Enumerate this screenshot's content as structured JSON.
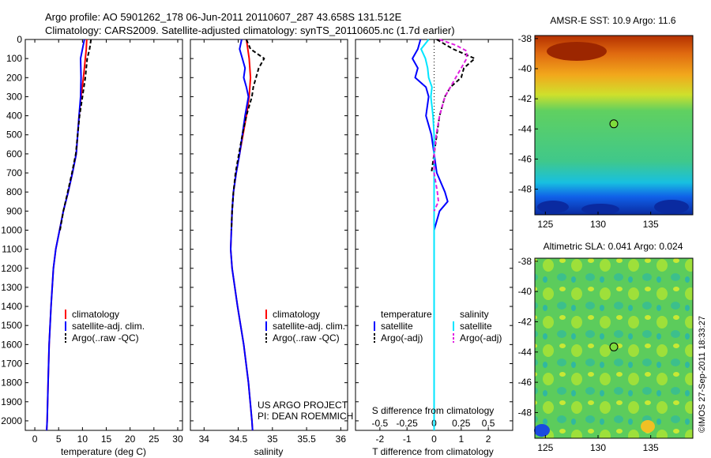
{
  "header": {
    "line1": "Argo profile: AO 5901262_178 06-Jun-2011 20110607_287 43.658S 131.512E",
    "line2": "Climatology: CARS2009. Satellite-adjusted climatology: synTS_20110605.nc (1.7d earlier)"
  },
  "colors": {
    "climatology": "#ff0000",
    "satellite": "#0000ff",
    "argo": "#000000",
    "sal_satellite": "#00e5ff",
    "sal_argo": "#e020e0"
  },
  "panels": {
    "temperature": {
      "xlabel": "temperature (deg C)",
      "legend": [
        "climatology",
        "satellite-adj. clim.",
        "Argo(..raw -QC)"
      ]
    },
    "salinity": {
      "xlabel": "salinity",
      "legend": [
        "climatology",
        "satellite-adj. clim.",
        "Argo(..raw -QC)"
      ],
      "project_note": [
        "US ARGO PROJECT",
        "PI: DEAN ROEMMICH"
      ]
    },
    "difference": {
      "xlabel": "T difference from climatology",
      "top_label": "S difference from climatology",
      "legend_temp_title": "temperature",
      "legend_sal_title": "salinity",
      "legend_temp": [
        "satellite",
        "Argo(-adj)"
      ],
      "legend_sal": [
        "satellite",
        "Argo(-adj)"
      ]
    },
    "sst_map": {
      "title": "AMSR-E SST: 10.9 Argo: 11.6"
    },
    "sla_map": {
      "title": "Altimetric SLA: 0.041 Argo: 0.024"
    }
  },
  "stamp": "©IMOS 27-Sep-2011 18:33:27",
  "chart_data": [
    {
      "type": "line",
      "name": "temperature",
      "xlabel": "temperature (deg C)",
      "ylabel": "",
      "xlim": [
        -2,
        31
      ],
      "ylim": [
        2050,
        0
      ],
      "xticks": [
        0,
        5,
        10,
        15,
        20,
        25,
        30
      ],
      "yticks": [
        0,
        100,
        200,
        300,
        400,
        500,
        600,
        700,
        800,
        900,
        1000,
        1100,
        1200,
        1300,
        1400,
        1500,
        1600,
        1700,
        1800,
        1900,
        2000
      ],
      "series": [
        {
          "name": "climatology",
          "color": "#ff0000",
          "dash": "",
          "depth": [
            0,
            50,
            100,
            200,
            300,
            400,
            500,
            600,
            700,
            800,
            900,
            1000,
            1100,
            1200,
            1400,
            1600,
            1800,
            2000,
            2050
          ],
          "values": [
            10.9,
            10.8,
            10.6,
            10.2,
            9.7,
            9.3,
            9.0,
            8.7,
            7.9,
            7.0,
            6.0,
            5.2,
            4.4,
            3.9,
            3.4,
            3.0,
            2.8,
            2.6,
            2.5
          ]
        },
        {
          "name": "satellite-adj. clim.",
          "color": "#0000ff",
          "dash": "",
          "depth": [
            0,
            50,
            100,
            200,
            300,
            400,
            500,
            600,
            700,
            800,
            900,
            1000,
            1100,
            1200,
            1400,
            1600,
            1800,
            2000,
            2050
          ],
          "values": [
            10.4,
            10.0,
            9.6,
            9.7,
            9.6,
            9.3,
            9.0,
            8.7,
            7.9,
            7.0,
            6.0,
            5.2,
            4.4,
            3.9,
            3.4,
            3.0,
            2.8,
            2.6,
            2.5
          ]
        },
        {
          "name": "Argo(..raw -QC)",
          "color": "#000000",
          "dash": "5,3",
          "depth": [
            0,
            50,
            100,
            200,
            300,
            400,
            500,
            600,
            700,
            800,
            900,
            1000
          ],
          "values": [
            11.8,
            11.5,
            11.0,
            10.6,
            10.0,
            9.4,
            9.0,
            8.6,
            7.8,
            6.9,
            6.0,
            5.3
          ]
        }
      ]
    },
    {
      "type": "line",
      "name": "salinity",
      "xlabel": "salinity",
      "ylabel": "",
      "xlim": [
        33.8,
        36.1
      ],
      "ylim": [
        2050,
        0
      ],
      "xticks": [
        34,
        34.5,
        35,
        35.5,
        36
      ],
      "series": [
        {
          "name": "climatology",
          "color": "#ff0000",
          "dash": "",
          "depth": [
            0,
            100,
            200,
            300,
            400,
            500,
            600,
            700,
            800,
            900,
            1000,
            1100,
            1200,
            1400,
            1600,
            1800,
            2000,
            2050
          ],
          "values": [
            34.62,
            34.66,
            34.68,
            34.66,
            34.62,
            34.57,
            34.52,
            34.47,
            34.43,
            34.41,
            34.4,
            34.39,
            34.41,
            34.49,
            34.58,
            34.65,
            34.7,
            34.71
          ]
        },
        {
          "name": "satellite-adj. clim.",
          "color": "#0000ff",
          "dash": "",
          "depth": [
            0,
            50,
            100,
            150,
            200,
            250,
            300,
            400,
            500,
            600,
            700,
            800,
            900,
            1000,
            1100,
            1200,
            1400,
            1600,
            1800,
            2000,
            2050
          ],
          "values": [
            34.55,
            34.52,
            34.56,
            34.6,
            34.58,
            34.62,
            34.65,
            34.6,
            34.56,
            34.52,
            34.47,
            34.43,
            34.41,
            34.4,
            34.39,
            34.41,
            34.49,
            34.58,
            34.65,
            34.7,
            34.71
          ]
        },
        {
          "name": "Argo(..raw -QC)",
          "color": "#000000",
          "dash": "5,3",
          "depth": [
            0,
            50,
            100,
            150,
            200,
            250,
            300,
            400,
            500,
            600,
            700,
            800,
            900,
            1000
          ],
          "values": [
            34.62,
            34.68,
            34.88,
            34.8,
            34.76,
            34.72,
            34.7,
            34.62,
            34.56,
            34.51,
            34.46,
            34.43,
            34.41,
            34.4
          ]
        }
      ]
    },
    {
      "type": "line",
      "name": "difference",
      "xlabel": "T difference from climatology",
      "ylabel": "",
      "xlim": [
        -2.9,
        2.9
      ],
      "ylim": [
        2050,
        0
      ],
      "xticks": [
        -2,
        -1,
        0,
        1,
        2
      ],
      "secondary_xlabel": "S difference from climatology",
      "secondary_xticks": [
        -0.5,
        -0.25,
        0,
        0.25,
        0.5
      ],
      "series": [
        {
          "name": "temperature satellite",
          "color": "#0000ff",
          "dash": "",
          "depth": [
            0,
            50,
            100,
            150,
            200,
            250,
            300,
            400,
            500,
            600,
            700,
            800,
            850,
            900,
            1000,
            1200,
            1600,
            1800
          ],
          "values": [
            -0.5,
            -0.6,
            -0.8,
            -0.6,
            -0.7,
            -0.3,
            -0.2,
            -0.3,
            -0.1,
            0.0,
            0.1,
            0.4,
            0.5,
            0.2,
            0.0,
            0.0,
            0.0,
            0.0
          ]
        },
        {
          "name": "temperature Argo(-adj)",
          "color": "#000000",
          "dash": "5,3",
          "depth": [
            0,
            50,
            100,
            150,
            200,
            250,
            300,
            400,
            500,
            600,
            700
          ],
          "values": [
            0.1,
            0.7,
            1.5,
            1.1,
            1.0,
            0.6,
            0.4,
            0.2,
            0.1,
            0.0,
            -0.1
          ]
        },
        {
          "name": "salinity satellite",
          "color": "#00e5ff",
          "dash": "",
          "depth": [
            0,
            50,
            100,
            150,
            200,
            250,
            300,
            400,
            500,
            600,
            800,
            1000,
            1200,
            1600,
            2000,
            2050
          ],
          "values": [
            -0.05,
            -0.12,
            -0.08,
            -0.06,
            -0.05,
            -0.02,
            -0.03,
            -0.01,
            0.0,
            0.0,
            0.0,
            0.0,
            0.0,
            0.0,
            0.0,
            0.0
          ]
        },
        {
          "name": "salinity Argo(-adj)",
          "color": "#e020e0",
          "dash": "5,3",
          "depth": [
            0,
            30,
            60,
            100,
            150,
            200,
            250,
            300,
            400,
            500,
            600,
            700,
            800,
            850,
            900
          ],
          "values": [
            0.05,
            0.2,
            0.3,
            0.3,
            0.25,
            0.2,
            0.15,
            0.1,
            0.05,
            0.02,
            0.0,
            0.0,
            0.03,
            0.04,
            0.0
          ]
        }
      ]
    },
    {
      "type": "heatmap",
      "name": "AMSR-E SST",
      "title": "AMSR-E SST: 10.9 Argo: 11.6",
      "xlim": [
        124,
        139
      ],
      "ylim": [
        -49.7,
        -37.8
      ],
      "xticks": [
        125,
        130,
        135
      ],
      "yticks": [
        -38,
        -40,
        -42,
        -44,
        -46,
        -48
      ],
      "argo_position": [
        131.5,
        -43.66
      ]
    },
    {
      "type": "heatmap",
      "name": "Altimetric SLA",
      "title": "Altimetric SLA: 0.041 Argo: 0.024",
      "xlim": [
        124,
        139
      ],
      "ylim": [
        -49.7,
        -37.8
      ],
      "xticks": [
        125,
        130,
        135
      ],
      "yticks": [
        -38,
        -40,
        -42,
        -44,
        -46,
        -48
      ],
      "argo_position": [
        131.5,
        -43.66
      ]
    }
  ]
}
